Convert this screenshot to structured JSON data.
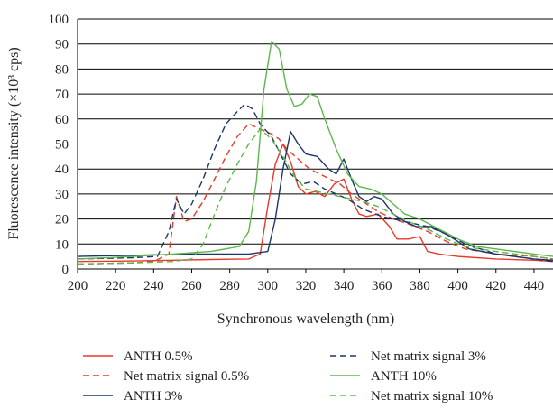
{
  "chart_data": {
    "type": "line",
    "xlabel": "Synchronous wavelength (nm)",
    "ylabel": "Fluorescence intensity (×10³ cps)",
    "xlim": [
      200,
      450
    ],
    "ylim": [
      0,
      100
    ],
    "x_ticks": [
      "200",
      "220",
      "240",
      "260",
      "280",
      "300",
      "320",
      "340",
      "360",
      "380",
      "400",
      "420",
      "440"
    ],
    "y_ticks": [
      "0",
      "10",
      "20",
      "30",
      "40",
      "50",
      "60",
      "70",
      "80",
      "90",
      "100"
    ],
    "grid": "horizontal",
    "legend_position": "bottom",
    "series": [
      {
        "name": "ANTH 0.5%",
        "color": "#e8392b",
        "dash": "solid",
        "points": [
          [
            200,
            3
          ],
          [
            230,
            3.2
          ],
          [
            250,
            3.5
          ],
          [
            270,
            3.8
          ],
          [
            290,
            4
          ],
          [
            296,
            6
          ],
          [
            300,
            25
          ],
          [
            304,
            42
          ],
          [
            308,
            50
          ],
          [
            312,
            43
          ],
          [
            316,
            33
          ],
          [
            320,
            30
          ],
          [
            325,
            31
          ],
          [
            330,
            29
          ],
          [
            335,
            34
          ],
          [
            340,
            36
          ],
          [
            344,
            28
          ],
          [
            348,
            22
          ],
          [
            352,
            21
          ],
          [
            358,
            22
          ],
          [
            364,
            17
          ],
          [
            368,
            12
          ],
          [
            374,
            12
          ],
          [
            380,
            13
          ],
          [
            384,
            7
          ],
          [
            390,
            6
          ],
          [
            400,
            5
          ],
          [
            420,
            4
          ],
          [
            440,
            3.5
          ],
          [
            450,
            3
          ]
        ]
      },
      {
        "name": "Net matrix signal 0.5%",
        "color": "#e8392b",
        "dash": "dashed",
        "points": [
          [
            200,
            2
          ],
          [
            230,
            2.5
          ],
          [
            240,
            3
          ],
          [
            248,
            6
          ],
          [
            252,
            29
          ],
          [
            256,
            19
          ],
          [
            260,
            20
          ],
          [
            266,
            27
          ],
          [
            272,
            36
          ],
          [
            278,
            45
          ],
          [
            284,
            53
          ],
          [
            290,
            58
          ],
          [
            296,
            56
          ],
          [
            302,
            54
          ],
          [
            306,
            52
          ],
          [
            310,
            48
          ],
          [
            316,
            44
          ],
          [
            322,
            40
          ],
          [
            330,
            37
          ],
          [
            338,
            34
          ],
          [
            344,
            30
          ],
          [
            350,
            27
          ],
          [
            358,
            23
          ],
          [
            366,
            20
          ],
          [
            374,
            18
          ],
          [
            384,
            15
          ],
          [
            394,
            11
          ],
          [
            404,
            8
          ],
          [
            420,
            6
          ],
          [
            440,
            5
          ],
          [
            450,
            4
          ]
        ]
      },
      {
        "name": "ANTH 3%",
        "color": "#1e3567",
        "dash": "solid",
        "points": [
          [
            200,
            5
          ],
          [
            230,
            5.5
          ],
          [
            260,
            6
          ],
          [
            290,
            6
          ],
          [
            300,
            7
          ],
          [
            304,
            20
          ],
          [
            308,
            40
          ],
          [
            312,
            55
          ],
          [
            316,
            50
          ],
          [
            320,
            46
          ],
          [
            326,
            45
          ],
          [
            332,
            40
          ],
          [
            336,
            38
          ],
          [
            340,
            44
          ],
          [
            344,
            36
          ],
          [
            348,
            29
          ],
          [
            352,
            27
          ],
          [
            356,
            29
          ],
          [
            360,
            28
          ],
          [
            366,
            22
          ],
          [
            372,
            19
          ],
          [
            378,
            17
          ],
          [
            386,
            17
          ],
          [
            396,
            13
          ],
          [
            406,
            8
          ],
          [
            420,
            6
          ],
          [
            440,
            4
          ],
          [
            450,
            3.5
          ]
        ]
      },
      {
        "name": "Net matrix signal 3%",
        "color": "#1e3567",
        "dash": "dashed",
        "points": [
          [
            200,
            4
          ],
          [
            230,
            4.5
          ],
          [
            242,
            5
          ],
          [
            248,
            15
          ],
          [
            252,
            28
          ],
          [
            256,
            22
          ],
          [
            260,
            26
          ],
          [
            266,
            36
          ],
          [
            272,
            48
          ],
          [
            278,
            58
          ],
          [
            284,
            63
          ],
          [
            288,
            66
          ],
          [
            292,
            64
          ],
          [
            296,
            58
          ],
          [
            302,
            53
          ],
          [
            306,
            47
          ],
          [
            312,
            38
          ],
          [
            318,
            34
          ],
          [
            324,
            35
          ],
          [
            330,
            32
          ],
          [
            336,
            30
          ],
          [
            342,
            28
          ],
          [
            350,
            24
          ],
          [
            360,
            21
          ],
          [
            372,
            19
          ],
          [
            384,
            17
          ],
          [
            394,
            14
          ],
          [
            404,
            10
          ],
          [
            420,
            6
          ],
          [
            440,
            4
          ],
          [
            450,
            3
          ]
        ]
      },
      {
        "name": "ANTH 10%",
        "color": "#5cb84a",
        "dash": "solid",
        "points": [
          [
            200,
            4
          ],
          [
            230,
            5
          ],
          [
            250,
            6
          ],
          [
            270,
            7
          ],
          [
            285,
            9
          ],
          [
            290,
            15
          ],
          [
            294,
            35
          ],
          [
            298,
            72
          ],
          [
            302,
            91
          ],
          [
            306,
            88
          ],
          [
            310,
            72
          ],
          [
            314,
            65
          ],
          [
            318,
            66
          ],
          [
            322,
            70
          ],
          [
            326,
            69
          ],
          [
            330,
            60
          ],
          [
            336,
            48
          ],
          [
            342,
            38
          ],
          [
            348,
            33
          ],
          [
            354,
            32
          ],
          [
            360,
            30
          ],
          [
            366,
            26
          ],
          [
            372,
            22
          ],
          [
            380,
            20
          ],
          [
            390,
            16
          ],
          [
            400,
            12
          ],
          [
            410,
            9
          ],
          [
            420,
            8
          ],
          [
            440,
            6
          ],
          [
            450,
            5
          ]
        ]
      },
      {
        "name": "Net matrix signal 10%",
        "color": "#5cb84a",
        "dash": "dashed",
        "points": [
          [
            200,
            2
          ],
          [
            230,
            2.5
          ],
          [
            250,
            3
          ],
          [
            260,
            4
          ],
          [
            266,
            10
          ],
          [
            272,
            22
          ],
          [
            278,
            33
          ],
          [
            284,
            42
          ],
          [
            290,
            50
          ],
          [
            296,
            56
          ],
          [
            302,
            52
          ],
          [
            308,
            45
          ],
          [
            314,
            37
          ],
          [
            320,
            32
          ],
          [
            326,
            31
          ],
          [
            332,
            30
          ],
          [
            338,
            29
          ],
          [
            344,
            28
          ],
          [
            350,
            27
          ],
          [
            358,
            25
          ],
          [
            366,
            22
          ],
          [
            374,
            19
          ],
          [
            384,
            16
          ],
          [
            394,
            12
          ],
          [
            404,
            9
          ],
          [
            420,
            7
          ],
          [
            440,
            5
          ],
          [
            450,
            4
          ]
        ]
      }
    ]
  }
}
